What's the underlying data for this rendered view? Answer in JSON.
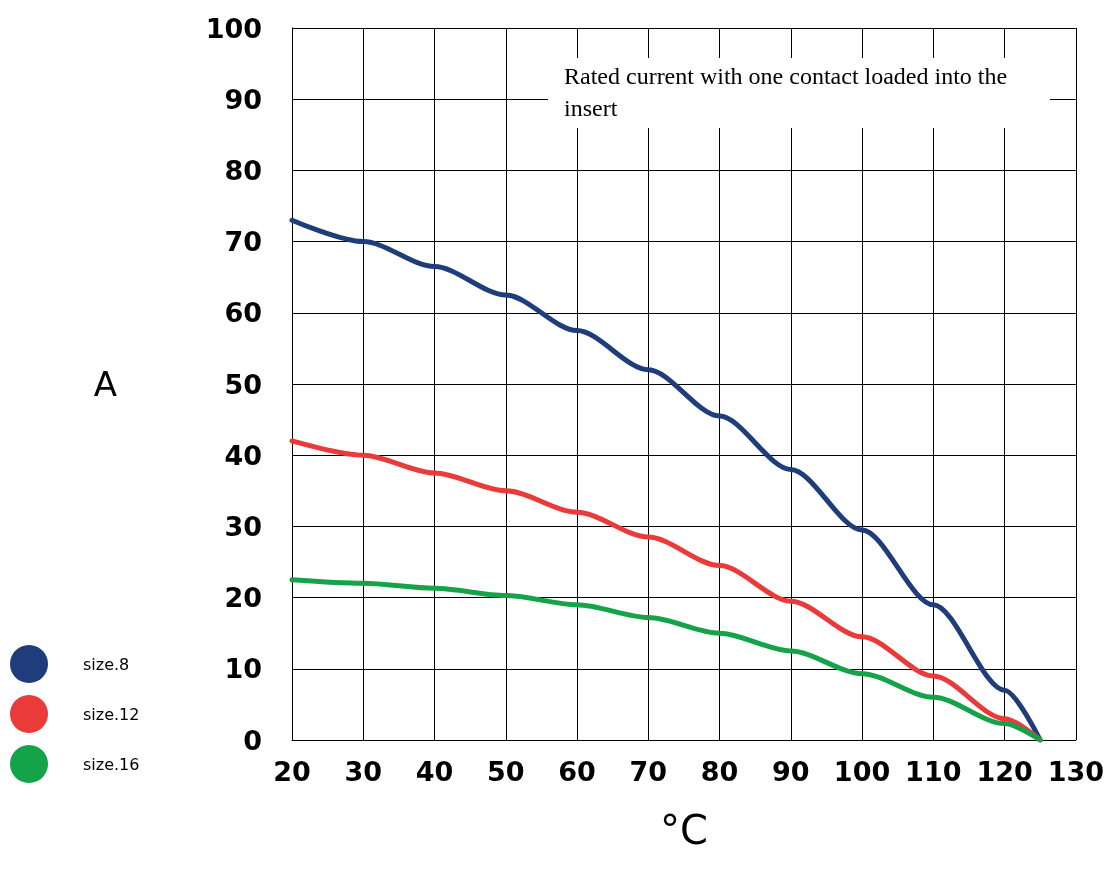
{
  "chart_data": {
    "type": "line",
    "xlabel": "°C",
    "ylabel": "A",
    "annotations": [
      "Rated current with one contact loaded into the insert"
    ],
    "x": [
      20,
      30,
      40,
      50,
      60,
      70,
      80,
      90,
      100,
      110,
      120,
      125
    ],
    "series": [
      {
        "name": "size.8",
        "color": "#1f3d7a",
        "values": [
          73,
          70,
          66.5,
          62.5,
          57.5,
          52,
          45.5,
          38,
          29.5,
          19,
          7,
          0
        ]
      },
      {
        "name": "size.12",
        "color": "#ea3a3a",
        "values": [
          42,
          40,
          37.5,
          35,
          32,
          28.5,
          24.5,
          19.5,
          14.5,
          9,
          3,
          0
        ]
      },
      {
        "name": "size.16",
        "color": "#15a34a",
        "values": [
          22.5,
          22,
          21.3,
          20.3,
          19,
          17.2,
          15,
          12.5,
          9.3,
          6,
          2.3,
          0
        ]
      }
    ],
    "xlim": [
      20,
      130
    ],
    "xticks": [
      20,
      30,
      40,
      50,
      60,
      70,
      80,
      90,
      100,
      110,
      120,
      130
    ],
    "ylim": [
      0,
      100
    ],
    "yticks": [
      0,
      10,
      20,
      30,
      40,
      50,
      60,
      70,
      80,
      90,
      100
    ],
    "grid": true,
    "legend": "left",
    "marker": "none",
    "line_style": "solid"
  }
}
